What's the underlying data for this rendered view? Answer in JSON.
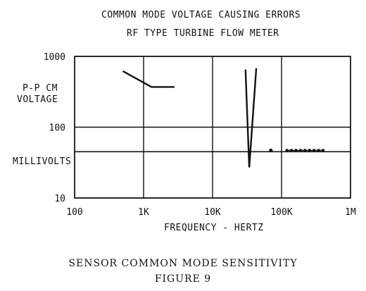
{
  "chart_data": {
    "type": "line",
    "title": "COMMON MODE VOLTAGE CAUSING ERRORS",
    "subtitle": "RF TYPE TURBINE FLOW METER",
    "xlabel": "FREQUENCY - HERTZ",
    "ylabel_lines": [
      "P-P CM",
      "VOLTAGE"
    ],
    "ylabel_units": "MILLIVOLTS",
    "xscale": "log",
    "yscale": "log",
    "xlim": [
      100,
      1000000
    ],
    "ylim": [
      10,
      1000
    ],
    "grid": true,
    "x_ticks": [
      {
        "value": 100,
        "label": "100"
      },
      {
        "value": 1000,
        "label": "1K"
      },
      {
        "value": 10000,
        "label": "10K"
      },
      {
        "value": 100000,
        "label": "100K"
      },
      {
        "value": 1000000,
        "label": "1M"
      }
    ],
    "y_ticks": [
      {
        "value": 10,
        "label": "10"
      },
      {
        "value": 100,
        "label": "100"
      },
      {
        "value": 1000,
        "label": "1000"
      }
    ],
    "series": [
      {
        "style": "solid",
        "points": [
          [
            500,
            620
          ],
          [
            1300,
            370
          ],
          [
            2800,
            370
          ]
        ]
      },
      {
        "style": "solid",
        "points": [
          [
            30000,
            650
          ],
          [
            34000,
            27
          ],
          [
            43000,
            680
          ]
        ]
      },
      {
        "style": "dotted",
        "points": [
          [
            70000,
            47
          ],
          [
            120000,
            47
          ],
          [
            200000,
            47
          ],
          [
            400000,
            47
          ]
        ]
      }
    ],
    "hlines": [
      45
    ]
  },
  "caption": {
    "line1": "SENSOR COMMON MODE SENSITIVITY",
    "line2": "FIGURE 9"
  },
  "colors": {
    "ink": "#111111",
    "background": "#ffffff"
  }
}
